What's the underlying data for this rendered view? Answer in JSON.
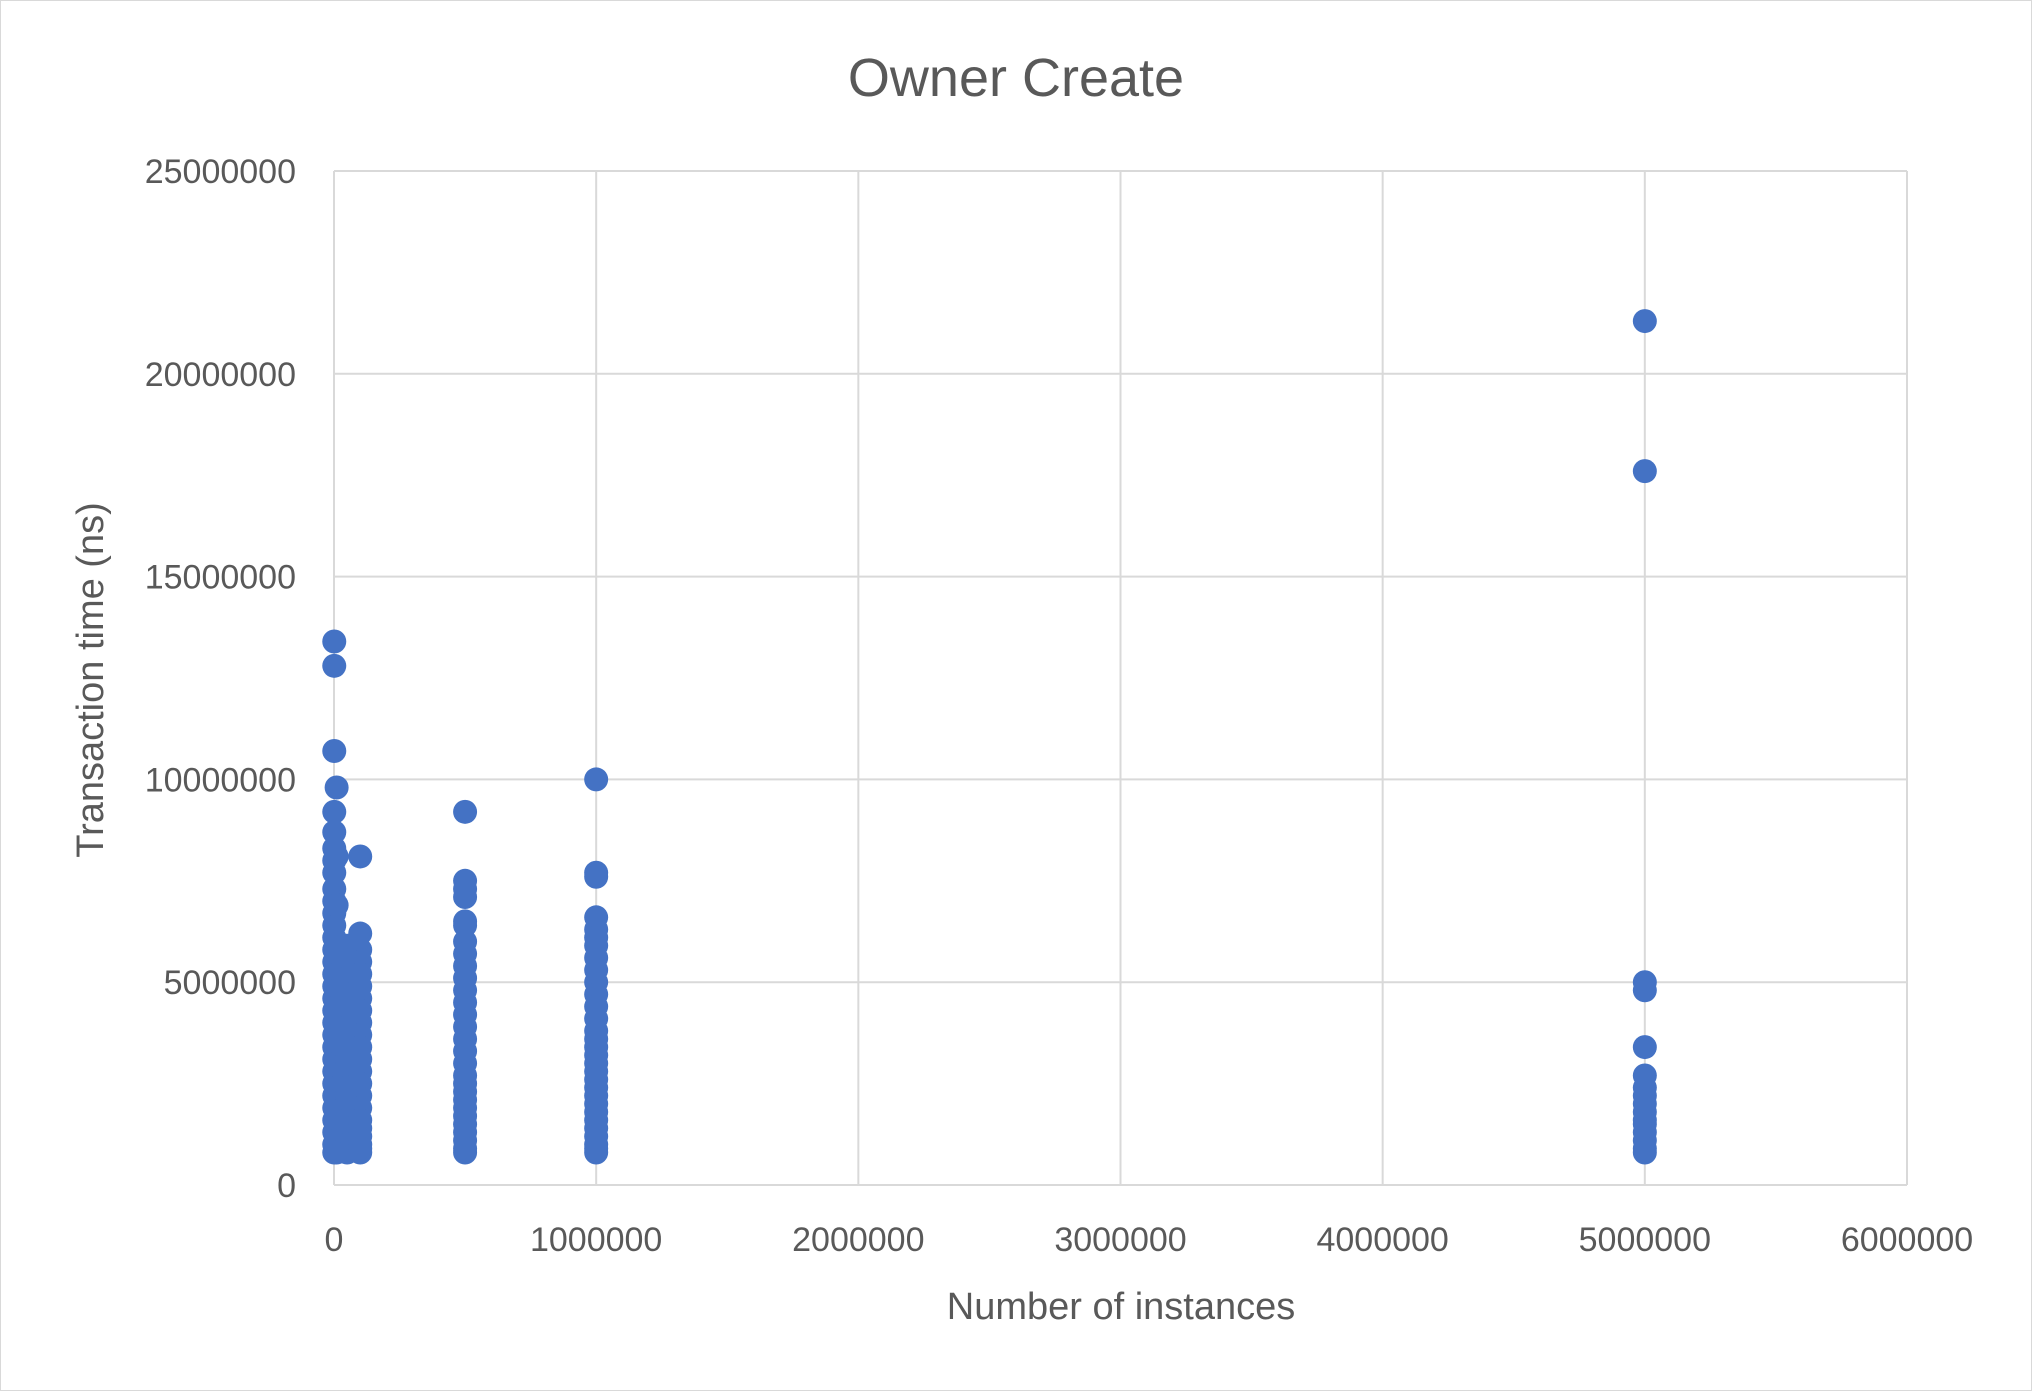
{
  "chart_data": {
    "type": "scatter",
    "title": "Owner Create",
    "xlabel": "Number of instances",
    "ylabel": "Transaction time (ns)",
    "xlim": [
      0,
      6000000
    ],
    "ylim": [
      0,
      25000000
    ],
    "x_ticks": [
      "0",
      "1000000",
      "2000000",
      "3000000",
      "4000000",
      "5000000",
      "6000000"
    ],
    "y_ticks": [
      "0",
      "5000000",
      "10000000",
      "15000000",
      "20000000",
      "25000000"
    ],
    "grid": true,
    "legend": "none",
    "marker_color": "#4472c4",
    "series": [
      {
        "x": [
          1000,
          1000,
          1000,
          1000,
          1000,
          1000,
          1000,
          1000,
          1000,
          1000,
          1000,
          1000,
          1000,
          1000,
          1000,
          1000,
          1000,
          1000,
          1000,
          1000,
          1000,
          1000,
          1000,
          1000,
          1000,
          1000,
          1000,
          1000,
          1000,
          1000,
          1000,
          10000,
          10000,
          10000,
          10000,
          10000,
          10000,
          10000,
          10000,
          10000,
          10000,
          10000,
          10000,
          10000,
          10000,
          10000,
          10000,
          10000,
          10000,
          10000,
          10000,
          10000,
          10000,
          50000,
          50000,
          50000,
          50000,
          50000,
          50000,
          50000,
          50000,
          50000,
          50000,
          50000,
          50000,
          50000,
          50000,
          50000,
          50000,
          50000,
          50000,
          50000,
          50000,
          100000,
          100000,
          100000,
          100000,
          100000,
          100000,
          100000,
          100000,
          100000,
          100000,
          100000,
          100000,
          100000,
          100000,
          100000,
          100000,
          100000,
          100000,
          100000,
          100000,
          100000,
          100000,
          500000,
          500000,
          500000,
          500000,
          500000,
          500000,
          500000,
          500000,
          500000,
          500000,
          500000,
          500000,
          500000,
          500000,
          500000,
          500000,
          500000,
          500000,
          500000,
          500000,
          500000,
          500000,
          500000,
          500000,
          500000,
          500000,
          500000,
          500000,
          1000000,
          1000000,
          1000000,
          1000000,
          1000000,
          1000000,
          1000000,
          1000000,
          1000000,
          1000000,
          1000000,
          1000000,
          1000000,
          1000000,
          1000000,
          1000000,
          1000000,
          1000000,
          1000000,
          1000000,
          1000000,
          1000000,
          1000000,
          1000000,
          1000000,
          1000000,
          1000000,
          1000000,
          1000000,
          1000000,
          5000000,
          5000000,
          5000000,
          5000000,
          5000000,
          5000000,
          5000000,
          5000000,
          5000000,
          5000000,
          5000000,
          5000000,
          5000000,
          5000000,
          5000000,
          5000000
        ],
        "y": [
          13400000,
          12800000,
          10700000,
          9200000,
          8700000,
          8300000,
          8000000,
          7700000,
          7300000,
          7000000,
          6700000,
          6400000,
          6100000,
          5800000,
          5500000,
          5200000,
          4900000,
          4600000,
          4300000,
          4000000,
          3700000,
          3400000,
          3100000,
          2800000,
          2500000,
          2200000,
          1900000,
          1600000,
          1300000,
          1000000,
          800000,
          9800000,
          8100000,
          6900000,
          6000000,
          5600000,
          5200000,
          4800000,
          4400000,
          4000000,
          3600000,
          3300000,
          3000000,
          2700000,
          2400000,
          2100000,
          1800000,
          1500000,
          1300000,
          1100000,
          900000,
          800000,
          2000000,
          5900000,
          5500000,
          5100000,
          4700000,
          4300000,
          3900000,
          3600000,
          3300000,
          3000000,
          2700000,
          2400000,
          2100000,
          1800000,
          1600000,
          1400000,
          1200000,
          1000000,
          800000,
          2200000,
          3100000,
          8100000,
          6200000,
          5800000,
          5500000,
          5200000,
          4900000,
          4600000,
          4300000,
          4000000,
          3700000,
          3400000,
          3100000,
          2800000,
          2500000,
          2200000,
          1900000,
          1600000,
          1400000,
          1200000,
          1000000,
          900000,
          800000,
          9200000,
          7500000,
          7300000,
          7100000,
          6500000,
          6400000,
          6000000,
          5700000,
          5400000,
          5100000,
          4800000,
          4500000,
          4200000,
          3900000,
          3600000,
          3300000,
          3000000,
          2700000,
          2500000,
          2300000,
          2100000,
          1900000,
          1700000,
          1500000,
          1300000,
          1100000,
          900000,
          800000,
          10000000,
          7700000,
          7600000,
          6600000,
          6300000,
          6100000,
          5900000,
          5600000,
          5300000,
          5000000,
          4700000,
          4400000,
          4100000,
          3800000,
          3600000,
          3400000,
          3200000,
          3000000,
          2800000,
          2600000,
          2400000,
          2200000,
          2000000,
          1800000,
          1600000,
          1400000,
          1200000,
          1000000,
          900000,
          800000,
          21300000,
          17600000,
          5000000,
          4800000,
          3400000,
          2700000,
          2400000,
          2200000,
          2000000,
          1800000,
          1600000,
          1500000,
          1300000,
          1100000,
          900000,
          800000
        ]
      }
    ]
  }
}
